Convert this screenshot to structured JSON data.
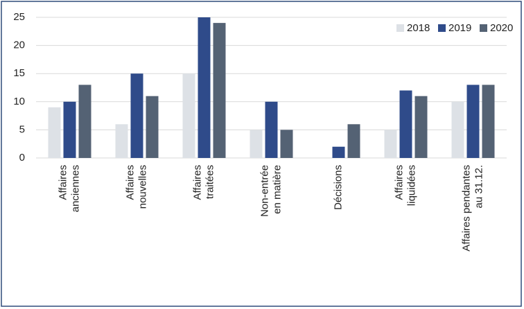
{
  "chart_data": {
    "type": "bar",
    "categories": [
      "Affaires\nanciennes",
      "Affaires\nnouvelles",
      "Affaires\ntraitées",
      "Non-entrée\nen matière",
      "Décisions",
      "Affaires\nliquidées",
      "Affaires pendantes\nau 31.12."
    ],
    "series": [
      {
        "name": "2018",
        "color": "#dde1e6",
        "values": [
          9,
          6,
          15,
          5,
          0,
          5,
          10
        ]
      },
      {
        "name": "2019",
        "color": "#2f4b8a",
        "values": [
          10,
          15,
          25,
          10,
          2,
          12,
          13
        ]
      },
      {
        "name": "2020",
        "color": "#546274",
        "values": [
          13,
          11,
          24,
          5,
          6,
          11,
          13
        ]
      }
    ],
    "ylim": [
      0,
      25
    ],
    "yticks": [
      0,
      5,
      10,
      15,
      20,
      25
    ],
    "grid": true,
    "legend": "top-right"
  }
}
